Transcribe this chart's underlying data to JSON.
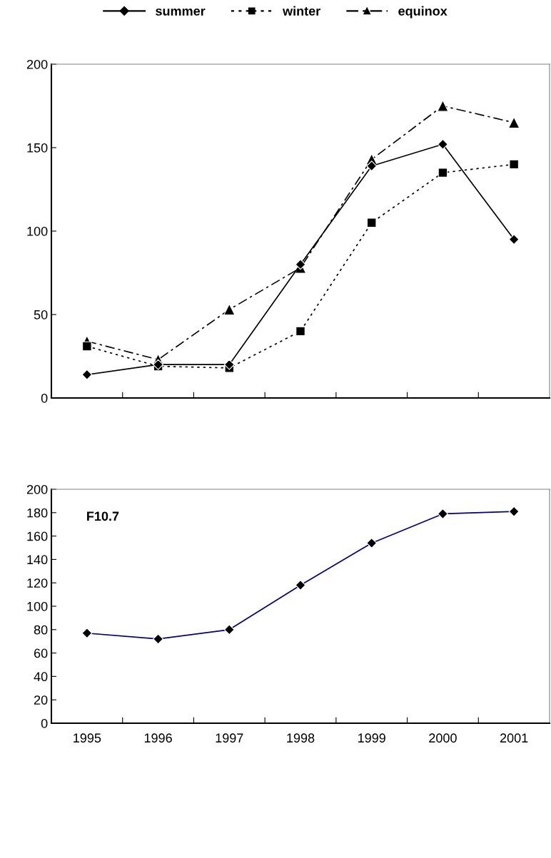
{
  "chart_data": [
    {
      "type": "line",
      "categories": [
        "1995",
        "1996",
        "1997",
        "1998",
        "1999",
        "2000",
        "2001"
      ],
      "ylim": [
        0,
        200
      ],
      "yticks": [
        0,
        50,
        100,
        150,
        200
      ],
      "tick_labels": "y",
      "legend": "top",
      "grid": false,
      "series": [
        {
          "name": "summer",
          "color": "#000000",
          "marker": "diamond",
          "line_style": "solid",
          "values": [
            14,
            20,
            20,
            80,
            139,
            152,
            95
          ]
        },
        {
          "name": "winter",
          "color": "#000000",
          "marker": "square",
          "line_style": "dotted",
          "values": [
            31,
            19,
            18,
            40,
            105,
            135,
            140
          ]
        },
        {
          "name": "equinox",
          "color": "#000000",
          "marker": "triangle",
          "line_style": "dashdot",
          "values": [
            34,
            23,
            53,
            78,
            143,
            175,
            165
          ]
        }
      ]
    },
    {
      "type": "line",
      "categories": [
        "1995",
        "1996",
        "1997",
        "1998",
        "1999",
        "2000",
        "2001"
      ],
      "ylim": [
        0,
        200
      ],
      "yticks": [
        0,
        20,
        40,
        60,
        80,
        100,
        120,
        140,
        160,
        180,
        200
      ],
      "grid": false,
      "legend": false,
      "annotations": [
        "F10.7"
      ],
      "series": [
        {
          "color": "#000080",
          "marker": "diamond",
          "line_style": "solid",
          "values": [
            77,
            72,
            80,
            118,
            154,
            179,
            181
          ]
        }
      ]
    }
  ]
}
